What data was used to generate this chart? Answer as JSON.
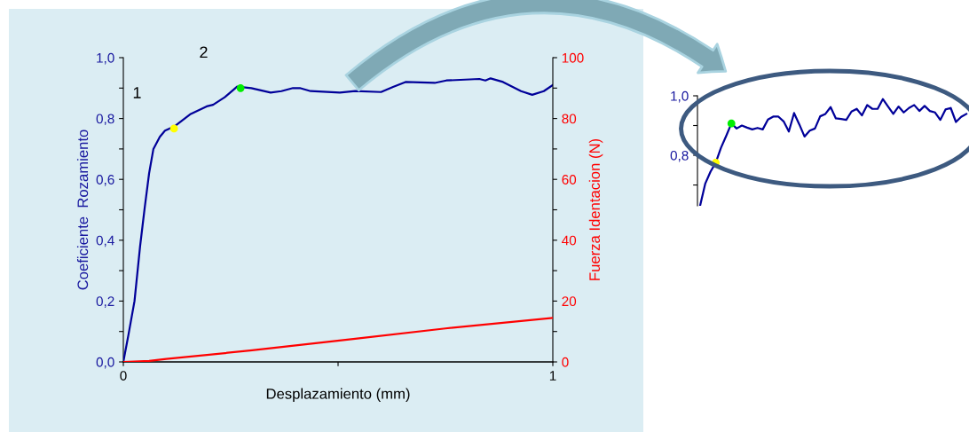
{
  "chart_data": [
    {
      "type": "line",
      "xlabel": "Desplazamiento (mm)",
      "ylabel": "Coeficiente  Rozamiento",
      "y2label": "Fuerza Identacion (N)",
      "xlim": [
        0,
        1
      ],
      "xticks": [
        0,
        {
          "value": 0.5,
          "label": null
        },
        1
      ],
      "ylim": [
        0,
        1.0
      ],
      "yticks": [
        {
          "value": 0,
          "label": "0,0"
        },
        {
          "value": 0.1,
          "label": null
        },
        {
          "value": 0.2,
          "label": "0,2"
        },
        {
          "value": 0.3,
          "label": null
        },
        {
          "value": 0.4,
          "label": "0,4"
        },
        {
          "value": 0.5,
          "label": null
        },
        {
          "value": 0.6,
          "label": "0,6"
        },
        {
          "value": 0.7,
          "label": null
        },
        {
          "value": 0.8,
          "label": "0,8"
        },
        {
          "value": 0.9,
          "label": null
        },
        {
          "value": 1.0,
          "label": "1,0"
        }
      ],
      "y2lim": [
        0,
        100
      ],
      "y2ticks": [
        0,
        {
          "value": 10,
          "label": null
        },
        20,
        {
          "value": 30,
          "label": null
        },
        40,
        {
          "value": 50,
          "label": null
        },
        60,
        {
          "value": 70,
          "label": null
        },
        80,
        {
          "value": 90,
          "label": null
        },
        100
      ],
      "grid": false,
      "legend": false,
      "series": [
        {
          "color": "#000099",
          "x": [
            0,
            0.012,
            0.026,
            0.039,
            0.05,
            0.06,
            0.07,
            0.085,
            0.097,
            0.12,
            0.157,
            0.194,
            0.209,
            0.236,
            0.265,
            0.298,
            0.343,
            0.368,
            0.395,
            0.411,
            0.436,
            0.504,
            0.54,
            0.6,
            0.628,
            0.657,
            0.725,
            0.752,
            0.829,
            0.843,
            0.855,
            0.884,
            0.926,
            0.952,
            0.979,
            1.0
          ],
          "values": [
            0,
            0.09,
            0.2,
            0.38,
            0.51,
            0.62,
            0.7,
            0.74,
            0.76,
            0.775,
            0.815,
            0.84,
            0.845,
            0.87,
            0.905,
            0.9,
            0.885,
            0.89,
            0.9,
            0.9,
            0.89,
            0.885,
            0.89,
            0.887,
            0.904,
            0.92,
            0.917,
            0.925,
            0.93,
            0.925,
            0.932,
            0.92,
            0.89,
            0.878,
            0.89,
            0.91
          ]
        },
        {
          "axis": "y2",
          "color": "#ff0000",
          "x": [
            0,
            0.06,
            0.1,
            0.3,
            0.54,
            0.75,
            1.0
          ],
          "values": [
            0,
            0.3,
            1,
            3.8,
            7.6,
            11,
            14.5
          ]
        },
        {
          "type": "scatter",
          "color": "#ffff00",
          "x": [
            0.118
          ],
          "values": [
            0.767
          ]
        },
        {
          "type": "scatter",
          "color": "#00ee00",
          "x": [
            0.273
          ],
          "values": [
            0.9
          ]
        }
      ],
      "annotations": [
        {
          "text": "1",
          "x": 0.118,
          "y": 0.767
        },
        {
          "text": "2",
          "x": 0.273,
          "y": 0.9
        }
      ]
    },
    {
      "type": "line",
      "tick_labels": "y",
      "grid": false,
      "legend": false,
      "ylim": [
        0.63,
        1.0
      ],
      "yticks": [
        {
          "value": 0.7,
          "label": null
        },
        {
          "value": 0.8,
          "label": "0,8"
        },
        {
          "value": 0.9,
          "label": null
        },
        {
          "value": 1.0,
          "label": "1,0"
        }
      ],
      "categories": [
        null,
        null,
        null,
        null,
        null,
        null,
        null,
        null,
        null,
        null,
        null,
        null,
        null,
        null,
        null,
        null,
        null,
        null,
        null,
        null,
        null,
        null,
        null,
        null,
        null,
        null,
        null,
        null,
        null,
        null,
        null,
        null,
        null,
        null,
        null,
        null,
        null,
        null,
        null,
        null,
        null,
        null,
        null,
        null,
        null,
        null,
        null,
        null,
        null,
        null,
        null,
        null
      ],
      "series": [
        {
          "color": "#000099",
          "values": [
            0.63,
            0.705,
            0.745,
            0.775,
            0.825,
            0.865,
            0.907,
            0.89,
            0.9,
            0.893,
            0.887,
            0.892,
            0.887,
            0.92,
            0.93,
            0.93,
            0.914,
            0.88,
            0.942,
            0.904,
            0.863,
            0.883,
            0.89,
            0.931,
            0.939,
            0.962,
            0.924,
            0.922,
            0.919,
            0.947,
            0.956,
            0.934,
            0.969,
            0.956,
            0.956,
            0.989,
            0.964,
            0.939,
            0.964,
            0.944,
            0.959,
            0.969,
            0.949,
            0.966,
            0.949,
            0.944,
            0.919,
            0.954,
            0.959,
            0.912,
            0.929,
            0.939
          ]
        },
        {
          "type": "scatter",
          "color": "#ffff00",
          "values": [
            null,
            null,
            null,
            0.775,
            null,
            null,
            null,
            null,
            null,
            null,
            null,
            null,
            null,
            null,
            null,
            null,
            null,
            null,
            null,
            null,
            null,
            null,
            null,
            null,
            null,
            null,
            null,
            null,
            null,
            null,
            null,
            null,
            null,
            null,
            null,
            null,
            null,
            null,
            null,
            null,
            null,
            null,
            null,
            null,
            null,
            null,
            null,
            null,
            null,
            null,
            null,
            null
          ]
        },
        {
          "type": "scatter",
          "color": "#00ee00",
          "values": [
            null,
            null,
            null,
            null,
            null,
            null,
            0.907,
            null,
            null,
            null,
            null,
            null,
            null,
            null,
            null,
            null,
            null,
            null,
            null,
            null,
            null,
            null,
            null,
            null,
            null,
            null,
            null,
            null,
            null,
            null,
            null,
            null,
            null,
            null,
            null,
            null,
            null,
            null,
            null,
            null,
            null,
            null,
            null,
            null,
            null,
            null,
            null,
            null,
            null,
            null,
            null,
            null
          ]
        }
      ]
    }
  ]
}
